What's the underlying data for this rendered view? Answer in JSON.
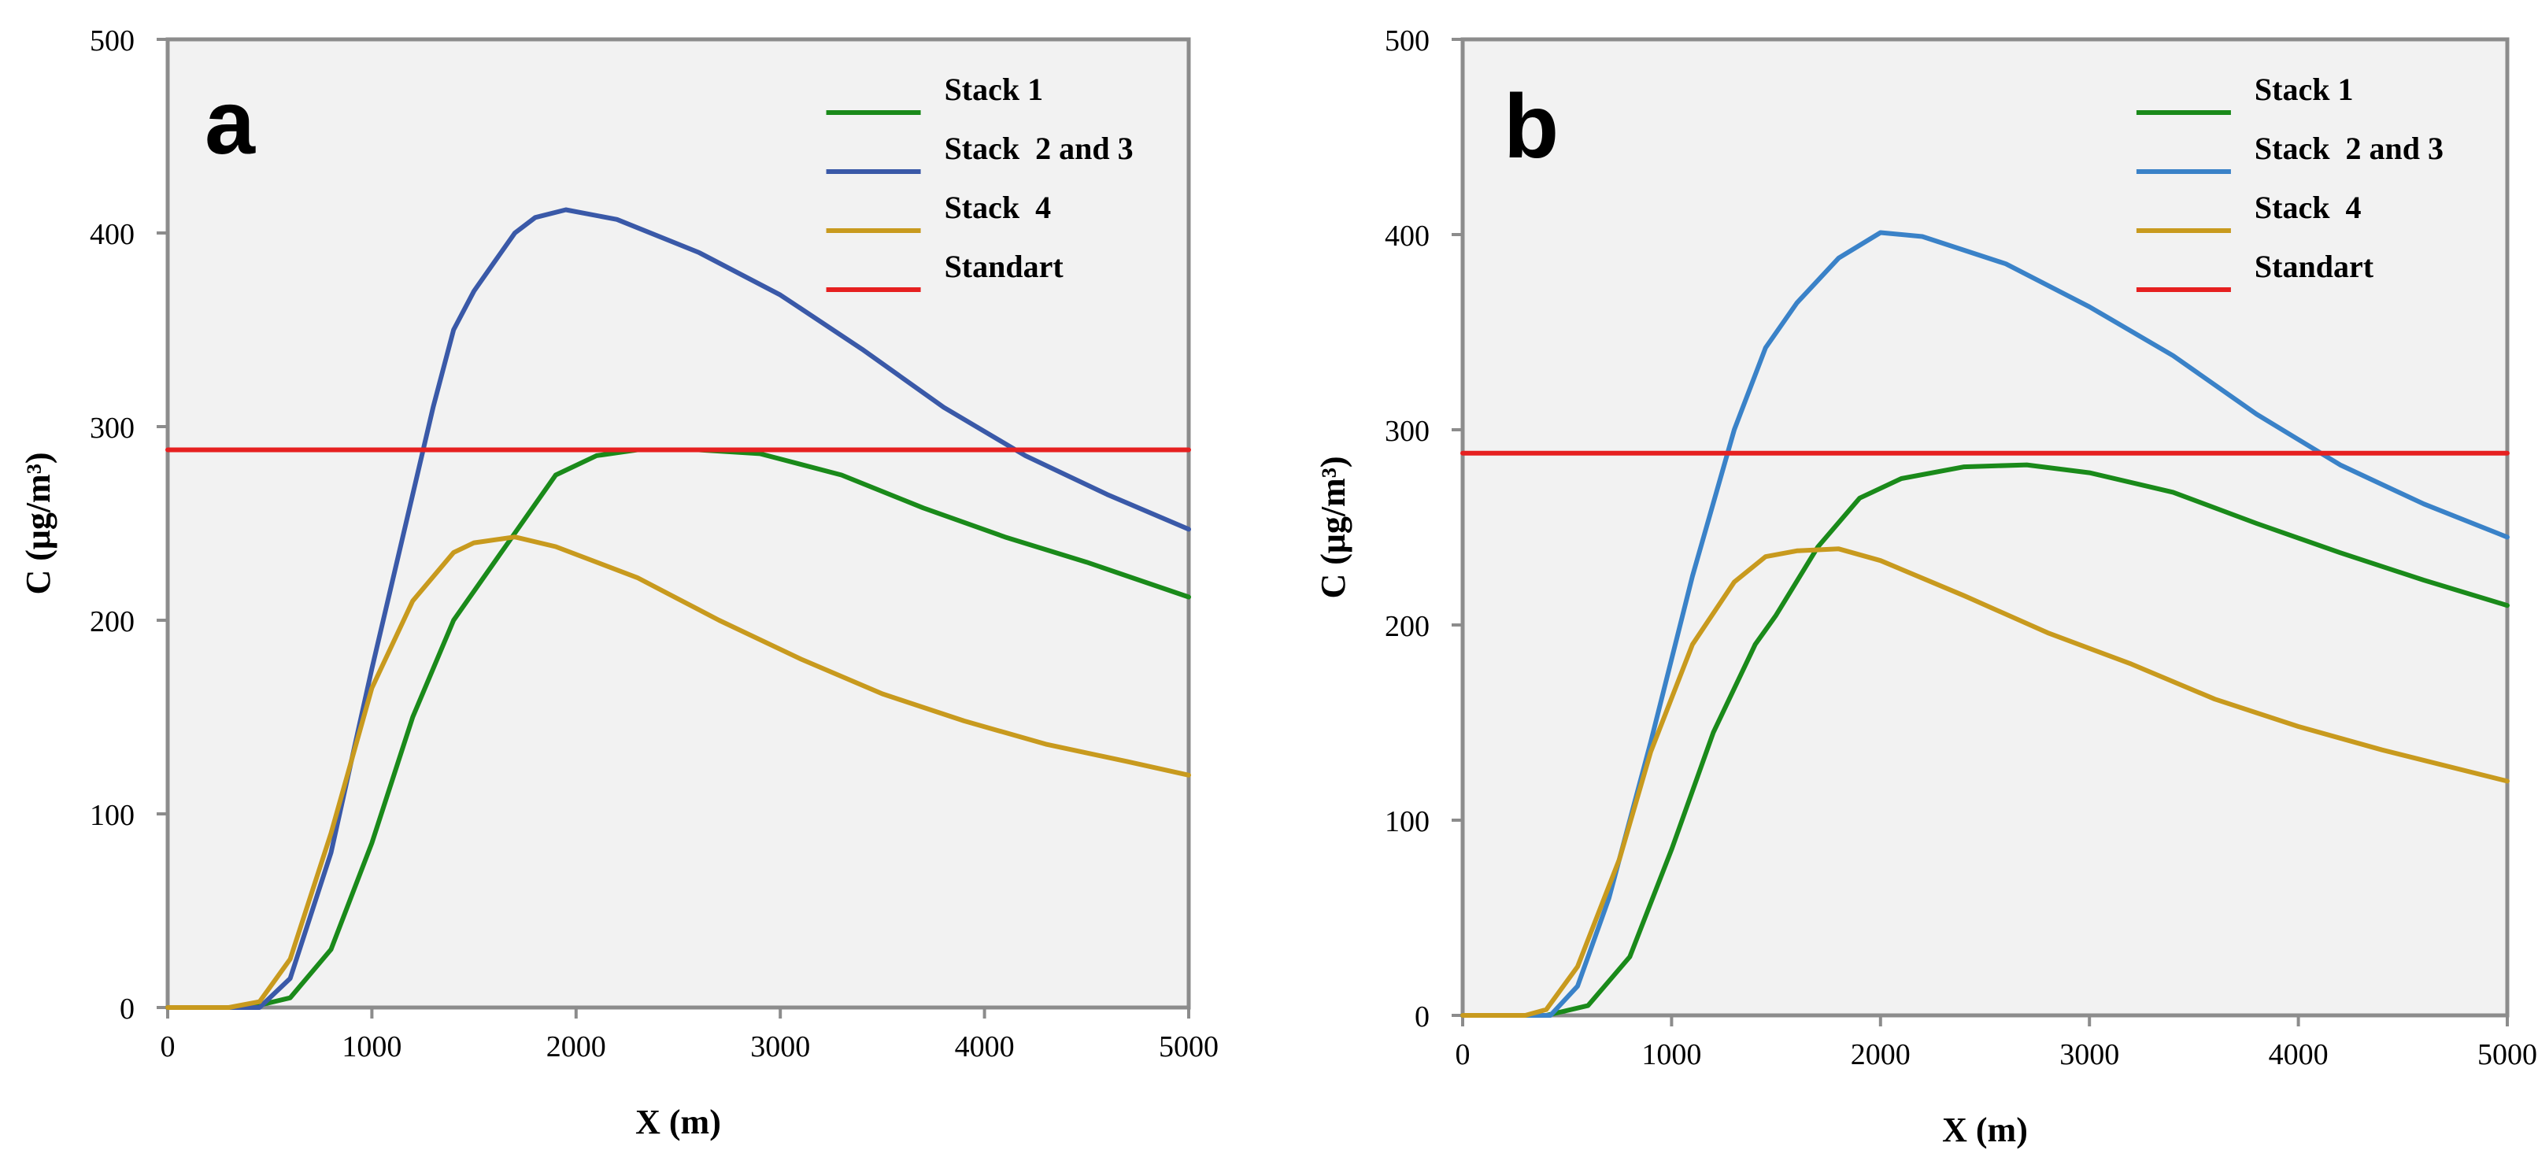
{
  "chart_data": [
    {
      "type": "line",
      "panel_label": "a",
      "xlabel": "X (m)",
      "ylabel": "C (μg/m³)",
      "xlim": [
        0,
        5000
      ],
      "ylim": [
        0,
        500
      ],
      "xticks": [
        0,
        1000,
        2000,
        3000,
        4000,
        5000
      ],
      "yticks": [
        0,
        100,
        200,
        300,
        400,
        500
      ],
      "legend_position": "top-right",
      "grid": false,
      "series": [
        {
          "name": "Stack 1",
          "color": "#1a8a1a",
          "points": [
            [
              0,
              0
            ],
            [
              400,
              0
            ],
            [
              600,
              5
            ],
            [
              800,
              30
            ],
            [
              1000,
              85
            ],
            [
              1200,
              150
            ],
            [
              1400,
              200
            ],
            [
              1500,
              215
            ],
            [
              1700,
              245
            ],
            [
              1900,
              275
            ],
            [
              2100,
              285
            ],
            [
              2300,
              288
            ],
            [
              2600,
              288
            ],
            [
              2900,
              286
            ],
            [
              3300,
              275
            ],
            [
              3700,
              258
            ],
            [
              4100,
              243
            ],
            [
              4500,
              230
            ],
            [
              5000,
              212
            ]
          ]
        },
        {
          "name": "Stack  2 and 3",
          "color": "#3a59a8",
          "points": [
            [
              0,
              0
            ],
            [
              450,
              0
            ],
            [
              600,
              15
            ],
            [
              800,
              80
            ],
            [
              1000,
              175
            ],
            [
              1200,
              265
            ],
            [
              1300,
              310
            ],
            [
              1400,
              350
            ],
            [
              1500,
              370
            ],
            [
              1600,
              385
            ],
            [
              1700,
              400
            ],
            [
              1800,
              408
            ],
            [
              1950,
              412
            ],
            [
              2200,
              407
            ],
            [
              2600,
              390
            ],
            [
              3000,
              368
            ],
            [
              3400,
              340
            ],
            [
              3800,
              310
            ],
            [
              4200,
              285
            ],
            [
              4600,
              265
            ],
            [
              5000,
              247
            ]
          ]
        },
        {
          "name": "Stack  4",
          "color": "#c89a1e",
          "points": [
            [
              0,
              0
            ],
            [
              300,
              0
            ],
            [
              450,
              3
            ],
            [
              600,
              25
            ],
            [
              800,
              90
            ],
            [
              1000,
              165
            ],
            [
              1200,
              210
            ],
            [
              1400,
              235
            ],
            [
              1500,
              240
            ],
            [
              1700,
              243
            ],
            [
              1900,
              238
            ],
            [
              2300,
              222
            ],
            [
              2700,
              200
            ],
            [
              3100,
              180
            ],
            [
              3500,
              162
            ],
            [
              3900,
              148
            ],
            [
              4300,
              136
            ],
            [
              4700,
              127
            ],
            [
              5000,
              120
            ]
          ]
        },
        {
          "name": "Standart",
          "color": "#e62020",
          "points": [
            [
              0,
              288
            ],
            [
              5000,
              288
            ]
          ]
        }
      ]
    },
    {
      "type": "line",
      "panel_label": "b",
      "xlabel": "X (m)",
      "ylabel": "C (μg/m³)",
      "xlim": [
        0,
        5000
      ],
      "ylim": [
        0,
        500
      ],
      "xticks": [
        0,
        1000,
        2000,
        3000,
        4000,
        5000
      ],
      "yticks": [
        0,
        100,
        200,
        300,
        400,
        500
      ],
      "legend_position": "top-right",
      "grid": false,
      "series": [
        {
          "name": "Stack 1",
          "color": "#1a8a1a",
          "points": [
            [
              0,
              0
            ],
            [
              400,
              0
            ],
            [
              600,
              5
            ],
            [
              800,
              30
            ],
            [
              1000,
              85
            ],
            [
              1200,
              145
            ],
            [
              1400,
              190
            ],
            [
              1500,
              205
            ],
            [
              1700,
              240
            ],
            [
              1900,
              265
            ],
            [
              2100,
              275
            ],
            [
              2400,
              281
            ],
            [
              2700,
              282
            ],
            [
              3000,
              278
            ],
            [
              3400,
              268
            ],
            [
              3800,
              252
            ],
            [
              4200,
              237
            ],
            [
              4600,
              223
            ],
            [
              5000,
              210
            ]
          ]
        },
        {
          "name": "Stack  2 and 3",
          "color": "#3a82c8",
          "points": [
            [
              0,
              0
            ],
            [
              420,
              0
            ],
            [
              550,
              15
            ],
            [
              700,
              60
            ],
            [
              900,
              140
            ],
            [
              1100,
              225
            ],
            [
              1300,
              300
            ],
            [
              1450,
              342
            ],
            [
              1600,
              365
            ],
            [
              1800,
              388
            ],
            [
              2000,
              401
            ],
            [
              2200,
              399
            ],
            [
              2600,
              385
            ],
            [
              3000,
              363
            ],
            [
              3400,
              338
            ],
            [
              3800,
              308
            ],
            [
              4200,
              282
            ],
            [
              4600,
              262
            ],
            [
              5000,
              245
            ]
          ]
        },
        {
          "name": "Stack  4",
          "color": "#c89a1e",
          "points": [
            [
              0,
              0
            ],
            [
              300,
              0
            ],
            [
              400,
              3
            ],
            [
              550,
              25
            ],
            [
              750,
              80
            ],
            [
              900,
              135
            ],
            [
              1100,
              190
            ],
            [
              1300,
              222
            ],
            [
              1450,
              235
            ],
            [
              1600,
              238
            ],
            [
              1800,
              239
            ],
            [
              2000,
              233
            ],
            [
              2400,
              215
            ],
            [
              2800,
              196
            ],
            [
              3200,
              180
            ],
            [
              3600,
              162
            ],
            [
              4000,
              148
            ],
            [
              4400,
              136
            ],
            [
              5000,
              120
            ]
          ]
        },
        {
          "name": "Standart",
          "color": "#e62020",
          "points": [
            [
              0,
              288
            ],
            [
              5000,
              288
            ]
          ]
        }
      ]
    }
  ]
}
